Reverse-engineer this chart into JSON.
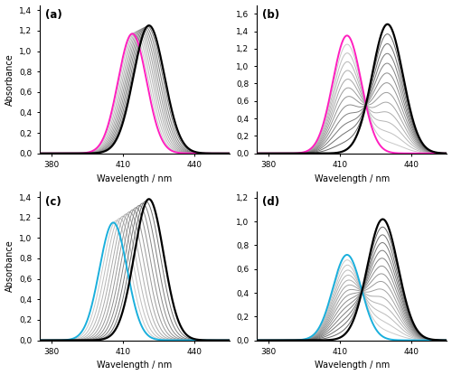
{
  "xlim": [
    375,
    455
  ],
  "xticks": [
    380,
    410,
    440
  ],
  "panels": [
    {
      "label": "(a)",
      "ylim": [
        0,
        1.45
      ],
      "yticks": [
        0.0,
        0.2,
        0.4,
        0.6,
        0.8,
        1.0,
        1.2,
        1.4
      ],
      "ytick_labels": [
        "0,0",
        "0,2",
        "0,4",
        "0,6",
        "0,8",
        "1,0",
        "1,2",
        "1,4"
      ],
      "black_peak": 421,
      "black_amp": 1.25,
      "black_sigma": 6.5,
      "highlight_peak": 414,
      "highlight_amp": 1.17,
      "highlight_sigma": 6.0,
      "highlight_color": "#FF1FBF",
      "n_intermediate": 9,
      "type": "shift"
    },
    {
      "label": "(b)",
      "ylim": [
        0,
        1.7
      ],
      "yticks": [
        0.0,
        0.2,
        0.4,
        0.6,
        0.8,
        1.0,
        1.2,
        1.4,
        1.6
      ],
      "ytick_labels": [
        "0,0",
        "0,2",
        "0,4",
        "0,6",
        "0,8",
        "1,0",
        "1,2",
        "1,4",
        "1,6"
      ],
      "black_peak": 430,
      "black_amp": 1.48,
      "black_sigma": 6.5,
      "highlight_peak": 413,
      "highlight_amp": 1.35,
      "highlight_sigma": 6.0,
      "highlight_color": "#FF1FBF",
      "n_intermediate": 12,
      "type": "two_peak"
    },
    {
      "label": "(c)",
      "ylim": [
        0,
        1.45
      ],
      "yticks": [
        0.0,
        0.2,
        0.4,
        0.6,
        0.8,
        1.0,
        1.2,
        1.4
      ],
      "ytick_labels": [
        "0,0",
        "0,2",
        "0,4",
        "0,6",
        "0,8",
        "1,0",
        "1,2",
        "1,4"
      ],
      "black_peak": 421,
      "black_amp": 1.38,
      "black_sigma": 6.2,
      "highlight_peak": 406,
      "highlight_amp": 1.15,
      "highlight_sigma": 5.8,
      "highlight_color": "#1AAFDC",
      "n_intermediate": 10,
      "type": "shift"
    },
    {
      "label": "(d)",
      "ylim": [
        0,
        1.25
      ],
      "yticks": [
        0.0,
        0.2,
        0.4,
        0.6,
        0.8,
        1.0,
        1.2
      ],
      "ytick_labels": [
        "0,0",
        "0,2",
        "0,4",
        "0,6",
        "0,8",
        "1,0",
        "1,2"
      ],
      "black_peak": 428,
      "black_amp": 1.02,
      "black_sigma": 6.5,
      "highlight_peak": 413,
      "highlight_amp": 0.72,
      "highlight_sigma": 6.0,
      "highlight_color": "#1AAFDC",
      "n_intermediate": 14,
      "type": "two_peak"
    }
  ],
  "xlabel": "Wavelength / nm",
  "ylabel": "Absorbance",
  "bg_color": "#FFFFFF"
}
